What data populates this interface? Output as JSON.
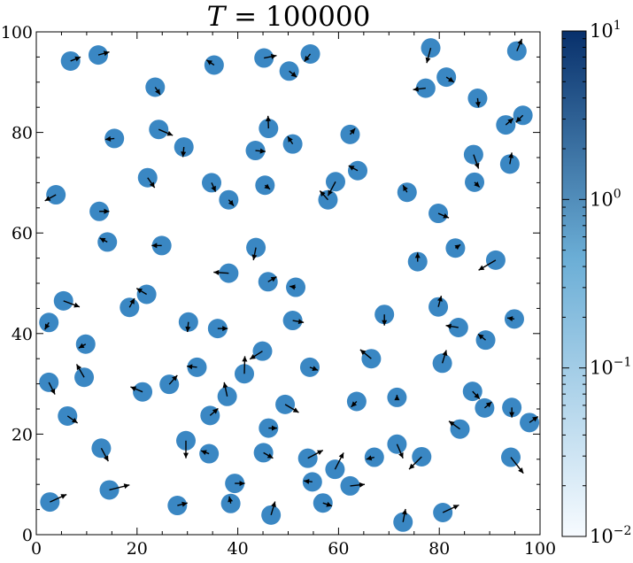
{
  "colors": {
    "particle": "#3a87c3",
    "arrow": "#000000",
    "frame": "#000000",
    "cmap_low": "#f7fbff",
    "cmap_mid": "#6baed6",
    "cmap_high": "#08306b"
  },
  "chart_data": {
    "type": "scatter",
    "title_var": "T",
    "title_value": "100000",
    "xlim": [
      0,
      100
    ],
    "ylim": [
      0,
      100
    ],
    "x_ticks": [
      "0",
      "20",
      "40",
      "60",
      "80",
      "100"
    ],
    "y_ticks": [
      "0",
      "20",
      "40",
      "60",
      "80",
      "100"
    ],
    "grid": false,
    "colorbar": {
      "scale": "log",
      "range": [
        0.01,
        10
      ],
      "ticks": [
        {
          "base": "10",
          "exp": "1",
          "value": 10
        },
        {
          "base": "10",
          "exp": "0",
          "value": 1
        },
        {
          "base": "10",
          "exp": "−1",
          "value": 0.1
        },
        {
          "base": "10",
          "exp": "−2",
          "value": 0.01
        }
      ]
    },
    "particles": [
      {
        "x": 6.8,
        "y": 94.2,
        "dx": 2,
        "dy": 0.8
      },
      {
        "x": 12.3,
        "y": 95.4,
        "dx": 2.2,
        "dy": 0.6
      },
      {
        "x": 23.6,
        "y": 89.0,
        "dx": 1,
        "dy": -1.5
      },
      {
        "x": 35.3,
        "y": 93.4,
        "dx": -1.5,
        "dy": 1
      },
      {
        "x": 45.2,
        "y": 94.8,
        "dx": 2.5,
        "dy": 0.5
      },
      {
        "x": 50.2,
        "y": 92.2,
        "dx": 1.5,
        "dy": -1.2
      },
      {
        "x": 54.4,
        "y": 95.6,
        "dx": -1.2,
        "dy": -1.5
      },
      {
        "x": 78.3,
        "y": 96.8,
        "dx": -0.8,
        "dy": -3
      },
      {
        "x": 77.3,
        "y": 88.8,
        "dx": -2.5,
        "dy": -0.3
      },
      {
        "x": 81.4,
        "y": 91.0,
        "dx": 1.5,
        "dy": -1
      },
      {
        "x": 87.6,
        "y": 86.8,
        "dx": 0.2,
        "dy": -1.8
      },
      {
        "x": 95.4,
        "y": 96.2,
        "dx": 1,
        "dy": 2.4
      },
      {
        "x": 96.6,
        "y": 83.4,
        "dx": -1.4,
        "dy": -1.4
      },
      {
        "x": 93.2,
        "y": 81.5,
        "dx": 1.5,
        "dy": 1.3
      },
      {
        "x": 15.5,
        "y": 78.8,
        "dx": -1.8,
        "dy": -0.2
      },
      {
        "x": 24.3,
        "y": 80.6,
        "dx": 2.8,
        "dy": -1.2
      },
      {
        "x": 29.3,
        "y": 77.1,
        "dx": -0.2,
        "dy": -2
      },
      {
        "x": 46.1,
        "y": 80.8,
        "dx": -0.1,
        "dy": 2.5
      },
      {
        "x": 50.9,
        "y": 77.7,
        "dx": -1,
        "dy": 1.5
      },
      {
        "x": 43.5,
        "y": 76.4,
        "dx": 2,
        "dy": -0.2
      },
      {
        "x": 62.3,
        "y": 79.6,
        "dx": 1,
        "dy": 1.2
      },
      {
        "x": 86.8,
        "y": 75.6,
        "dx": 1,
        "dy": -2.8
      },
      {
        "x": 94.0,
        "y": 73.7,
        "dx": 0.4,
        "dy": 2.3
      },
      {
        "x": 3.9,
        "y": 67.6,
        "dx": -2.2,
        "dy": -1.2
      },
      {
        "x": 22.1,
        "y": 71.0,
        "dx": 1.4,
        "dy": -2
      },
      {
        "x": 34.8,
        "y": 70.0,
        "dx": 0.8,
        "dy": -1.8
      },
      {
        "x": 38.2,
        "y": 66.6,
        "dx": 1,
        "dy": -1.2
      },
      {
        "x": 45.4,
        "y": 69.5,
        "dx": 1,
        "dy": -0.8
      },
      {
        "x": 59.4,
        "y": 70.2,
        "dx": -1.5,
        "dy": -2.8
      },
      {
        "x": 63.8,
        "y": 72.4,
        "dx": -1.8,
        "dy": 1
      },
      {
        "x": 57.9,
        "y": 66.6,
        "dx": -1.6,
        "dy": 1.8
      },
      {
        "x": 73.6,
        "y": 68.1,
        "dx": -0.8,
        "dy": 1.4
      },
      {
        "x": 87.0,
        "y": 70.1,
        "dx": 1,
        "dy": -1
      },
      {
        "x": 12.5,
        "y": 64.3,
        "dx": 2,
        "dy": 0
      },
      {
        "x": 79.8,
        "y": 63.9,
        "dx": 2.1,
        "dy": -0.9
      },
      {
        "x": 14.1,
        "y": 58.2,
        "dx": -1.5,
        "dy": 0.8
      },
      {
        "x": 24.9,
        "y": 57.5,
        "dx": -2,
        "dy": 0
      },
      {
        "x": 43.6,
        "y": 57.1,
        "dx": -0.5,
        "dy": -2.5
      },
      {
        "x": 75.7,
        "y": 54.3,
        "dx": 0,
        "dy": 1.8
      },
      {
        "x": 83.2,
        "y": 57.0,
        "dx": 1,
        "dy": 0.7
      },
      {
        "x": 91.2,
        "y": 54.6,
        "dx": -3.4,
        "dy": -2
      },
      {
        "x": 38.2,
        "y": 52.0,
        "dx": -3,
        "dy": 0.2
      },
      {
        "x": 46.0,
        "y": 50.3,
        "dx": 1.7,
        "dy": 1
      },
      {
        "x": 51.5,
        "y": 49.2,
        "dx": -1.2,
        "dy": 0.2
      },
      {
        "x": 5.4,
        "y": 46.5,
        "dx": 3.2,
        "dy": -1.2
      },
      {
        "x": 18.5,
        "y": 45.2,
        "dx": 1,
        "dy": 1.8
      },
      {
        "x": 21.9,
        "y": 47.8,
        "dx": -2,
        "dy": 1.2
      },
      {
        "x": 79.8,
        "y": 45.3,
        "dx": 0.6,
        "dy": 2.2
      },
      {
        "x": 2.5,
        "y": 42.2,
        "dx": -0.8,
        "dy": -1.4
      },
      {
        "x": 30.2,
        "y": 42.3,
        "dx": -0.2,
        "dy": -2
      },
      {
        "x": 36.0,
        "y": 41.0,
        "dx": 2,
        "dy": 0
      },
      {
        "x": 50.9,
        "y": 42.6,
        "dx": 2.2,
        "dy": -0.4
      },
      {
        "x": 69.1,
        "y": 43.8,
        "dx": 0,
        "dy": -2.2
      },
      {
        "x": 83.8,
        "y": 41.2,
        "dx": -2.5,
        "dy": 0.4
      },
      {
        "x": 94.9,
        "y": 42.9,
        "dx": -1.4,
        "dy": 0.2
      },
      {
        "x": 9.8,
        "y": 37.9,
        "dx": -1.4,
        "dy": -0.8
      },
      {
        "x": 89.2,
        "y": 38.7,
        "dx": -1.5,
        "dy": 1.2
      },
      {
        "x": 44.9,
        "y": 36.5,
        "dx": -2.5,
        "dy": -1.6
      },
      {
        "x": 66.5,
        "y": 35.0,
        "dx": -2.2,
        "dy": 1.8
      },
      {
        "x": 80.6,
        "y": 34.1,
        "dx": 0.8,
        "dy": 2.6
      },
      {
        "x": 2.5,
        "y": 30.3,
        "dx": 1.2,
        "dy": -2.4
      },
      {
        "x": 9.5,
        "y": 31.3,
        "dx": -1.5,
        "dy": 2.6
      },
      {
        "x": 21.1,
        "y": 28.4,
        "dx": -2.4,
        "dy": 1
      },
      {
        "x": 26.4,
        "y": 29.9,
        "dx": 1.6,
        "dy": 1.8
      },
      {
        "x": 31.9,
        "y": 33.3,
        "dx": -2,
        "dy": 0.2
      },
      {
        "x": 37.9,
        "y": 27.5,
        "dx": -0.6,
        "dy": 2.8
      },
      {
        "x": 41.3,
        "y": 32.0,
        "dx": 0.1,
        "dy": 3.5
      },
      {
        "x": 54.3,
        "y": 33.3,
        "dx": 1.6,
        "dy": -0.6
      },
      {
        "x": 71.6,
        "y": 27.3,
        "dx": 0,
        "dy": 0.5
      },
      {
        "x": 86.6,
        "y": 28.5,
        "dx": 1.4,
        "dy": -1.5
      },
      {
        "x": 6.2,
        "y": 23.6,
        "dx": 2,
        "dy": -1.4
      },
      {
        "x": 34.5,
        "y": 23.7,
        "dx": 1.6,
        "dy": 1.4
      },
      {
        "x": 46.1,
        "y": 21.2,
        "dx": 1.7,
        "dy": 0
      },
      {
        "x": 49.4,
        "y": 25.9,
        "dx": 2.7,
        "dy": -1.6
      },
      {
        "x": 63.6,
        "y": 26.5,
        "dx": -1.1,
        "dy": -1.1
      },
      {
        "x": 84.1,
        "y": 21.0,
        "dx": -2.2,
        "dy": 1.6
      },
      {
        "x": 89.0,
        "y": 25.2,
        "dx": 1.4,
        "dy": 1.2
      },
      {
        "x": 94.4,
        "y": 25.3,
        "dx": 0,
        "dy": -2
      },
      {
        "x": 97.9,
        "y": 22.3,
        "dx": 1.7,
        "dy": 1.2
      },
      {
        "x": 29.7,
        "y": 18.7,
        "dx": 0,
        "dy": -3.5
      },
      {
        "x": 12.9,
        "y": 17.2,
        "dx": 1.4,
        "dy": -2.6
      },
      {
        "x": 34.3,
        "y": 16.1,
        "dx": -1.6,
        "dy": 0.6
      },
      {
        "x": 45.1,
        "y": 16.3,
        "dx": 1.9,
        "dy": -1.1
      },
      {
        "x": 53.9,
        "y": 15.2,
        "dx": 3,
        "dy": 1.6
      },
      {
        "x": 59.3,
        "y": 13.0,
        "dx": 1.7,
        "dy": 3.3
      },
      {
        "x": 67.1,
        "y": 15.4,
        "dx": -1.6,
        "dy": -0.4
      },
      {
        "x": 71.6,
        "y": 18.0,
        "dx": 1.2,
        "dy": -2.8
      },
      {
        "x": 76.5,
        "y": 15.5,
        "dx": -2.5,
        "dy": -2.5
      },
      {
        "x": 94.2,
        "y": 15.4,
        "dx": 2.5,
        "dy": -3.2
      },
      {
        "x": 14.5,
        "y": 8.9,
        "dx": 4,
        "dy": 1
      },
      {
        "x": 39.4,
        "y": 10.2,
        "dx": 2,
        "dy": 0
      },
      {
        "x": 54.8,
        "y": 10.5,
        "dx": -1.7,
        "dy": 0.2
      },
      {
        "x": 62.3,
        "y": 9.7,
        "dx": 2.9,
        "dy": 0.3
      },
      {
        "x": 2.7,
        "y": 6.5,
        "dx": 3.3,
        "dy": 1.5
      },
      {
        "x": 28.0,
        "y": 5.8,
        "dx": 2,
        "dy": 0.5
      },
      {
        "x": 38.6,
        "y": 6.2,
        "dx": -0.3,
        "dy": 1.4
      },
      {
        "x": 46.6,
        "y": 3.9,
        "dx": 0.8,
        "dy": 2.7
      },
      {
        "x": 56.9,
        "y": 6.3,
        "dx": 1.8,
        "dy": -0.6
      },
      {
        "x": 72.8,
        "y": 2.5,
        "dx": 0.5,
        "dy": 2.6
      },
      {
        "x": 80.7,
        "y": 4.4,
        "dx": 3.2,
        "dy": 1.5
      }
    ]
  }
}
